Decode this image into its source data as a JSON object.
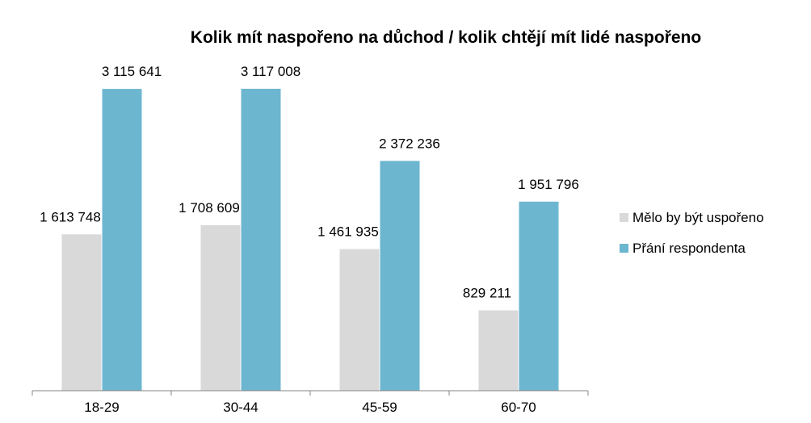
{
  "chart_data": {
    "type": "bar",
    "title": "Kolik mít naspořeno na důchod / kolik chtějí mít lidé naspořeno",
    "xlabel": "",
    "ylabel": "",
    "categories": [
      "18-29",
      "30-44",
      "45-59",
      "60-70"
    ],
    "series": [
      {
        "name": "Mělo by být uspořeno",
        "color": "#d9d9d9",
        "values": [
          1613748,
          1708609,
          1461935,
          829211
        ],
        "labels": [
          "1 613 748",
          "1 708 609",
          "1 461 935",
          "829 211"
        ]
      },
      {
        "name": "Přání respondenta",
        "color": "#6db6d0",
        "values": [
          3115641,
          3117008,
          2372236,
          1951796
        ],
        "labels": [
          "3 115 641",
          "3 117 008",
          "2 372 236",
          "1 951 796"
        ]
      }
    ],
    "ylim": [
      0,
      3500000
    ],
    "grid": false,
    "legend_position": "right",
    "axis_color": "#868686"
  }
}
